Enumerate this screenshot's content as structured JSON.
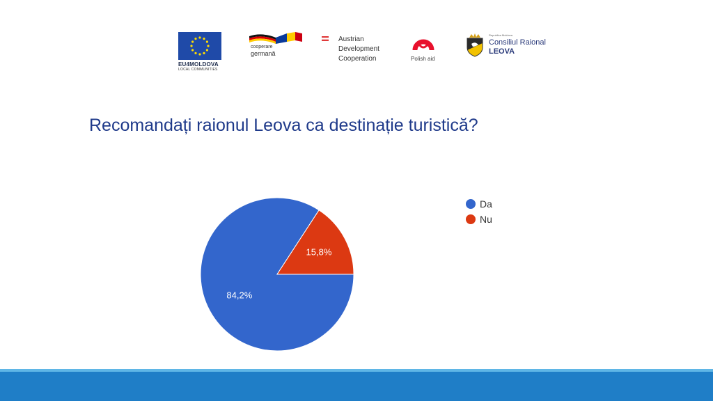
{
  "logos": {
    "eu_name": "EU4MOLDOVA",
    "eu_sub": "LOCAL COMMUNITIES",
    "german_line1": "cooperare",
    "german_line2": "germană",
    "austrian_line1": "Austrian",
    "austrian_line2": "Development",
    "austrian_line3": "Cooperation",
    "polish": "Polish aid",
    "consiliul_small": "Republica Moldova",
    "consiliul_line1": "Consiliul Raional",
    "consiliul_line2": "LEOVA"
  },
  "chart_data": {
    "type": "pie",
    "title": "Recomandați raionul Leova ca destinație turistică?",
    "categories": [
      "Da",
      "Nu"
    ],
    "values": [
      84.2,
      15.8
    ],
    "labels": [
      "84,2%",
      "15,8%"
    ],
    "colors": [
      "#3366cc",
      "#dc3912"
    ],
    "legend_position": "right"
  }
}
